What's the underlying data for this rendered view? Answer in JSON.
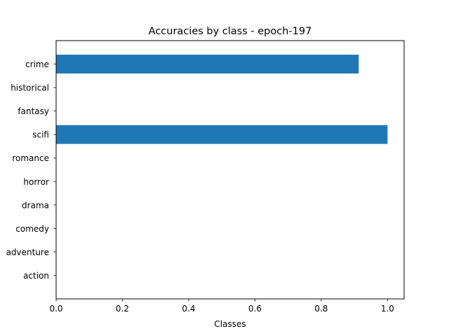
{
  "chart_data": {
    "type": "bar",
    "orientation": "horizontal",
    "title": "Accuracies by class - epoch-197",
    "xlabel": "Classes",
    "ylabel": "",
    "categories": [
      "action",
      "adventure",
      "comedy",
      "drama",
      "horror",
      "romance",
      "scifi",
      "fantasy",
      "historical",
      "crime"
    ],
    "values": [
      0.0,
      0.0,
      0.0,
      0.0,
      0.0,
      0.0,
      1.0,
      0.0,
      0.0,
      0.913
    ],
    "xlim": [
      0.0,
      1.05
    ],
    "xticks": [
      0.0,
      0.2,
      0.4,
      0.6,
      0.8,
      1.0
    ],
    "xtick_labels": [
      "0.0",
      "0.2",
      "0.4",
      "0.6",
      "0.8",
      "1.0"
    ],
    "grid": false,
    "bar_color": "#1f77b4"
  }
}
